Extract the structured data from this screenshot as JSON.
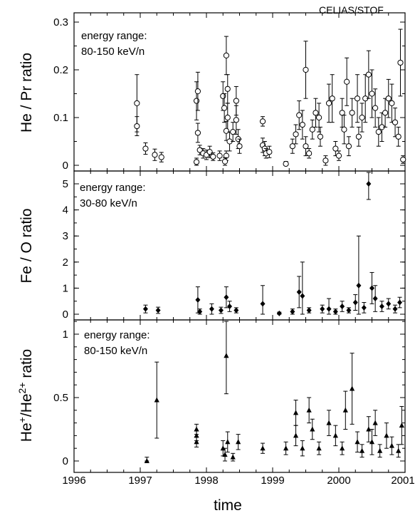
{
  "instrument_label": "CELIAS/STOF",
  "chart_data": {
    "type": "scatter",
    "xlabel": "time",
    "xlim": [
      1996,
      2001
    ],
    "xticks": [
      "1996",
      "1997",
      "1998",
      "1999",
      "2000",
      "2001"
    ],
    "error_bars": true,
    "panels": [
      {
        "ylabel": "He / Pr ratio",
        "ylim": [
          0,
          0.3
        ],
        "yticks": [
          "0",
          "0.1",
          "0.2",
          "0.3"
        ],
        "annotation": [
          "energy range:",
          "80-150 keV/n"
        ],
        "marker": "open-circle",
        "series": [
          {
            "points": [
              [
                1996.95,
                0.13,
                0.06
              ],
              [
                1996.95,
                0.082,
                0.02
              ],
              [
                1997.08,
                0.035,
                0.012
              ],
              [
                1997.22,
                0.022,
                0.012
              ],
              [
                1997.32,
                0.017,
                0.01
              ],
              [
                1997.85,
                0.007,
                0.008
              ],
              [
                1997.85,
                0.135,
                0.04
              ],
              [
                1997.87,
                0.155,
                0.04
              ],
              [
                1997.87,
                0.068,
                0.02
              ],
              [
                1997.9,
                0.032,
                0.01
              ],
              [
                1997.95,
                0.025,
                0.01
              ],
              [
                1998.0,
                0.022,
                0.01
              ],
              [
                1998.05,
                0.028,
                0.012
              ],
              [
                1998.1,
                0.018,
                0.008
              ],
              [
                1998.2,
                0.02,
                0.01
              ],
              [
                1998.25,
                0.145,
                0.03
              ],
              [
                1998.27,
                0.12,
                0.03
              ],
              [
                1998.3,
                0.23,
                0.04
              ],
              [
                1998.32,
                0.16,
                0.03
              ],
              [
                1998.32,
                0.1,
                0.03
              ],
              [
                1998.3,
                0.072,
                0.02
              ],
              [
                1998.35,
                0.05,
                0.02
              ],
              [
                1998.3,
                0.02,
                0.01
              ],
              [
                1998.28,
                0.008,
                0.008
              ],
              [
                1998.4,
                0.07,
                0.02
              ],
              [
                1998.45,
                0.135,
                0.03
              ],
              [
                1998.45,
                0.095,
                0.03
              ],
              [
                1998.48,
                0.055,
                0.02
              ],
              [
                1998.5,
                0.04,
                0.015
              ],
              [
                1998.85,
                0.092,
                0.01
              ],
              [
                1998.85,
                0.042,
                0.015
              ],
              [
                1998.88,
                0.035,
                0.015
              ],
              [
                1998.9,
                0.025,
                0.01
              ],
              [
                1998.95,
                0.028,
                0.012
              ],
              [
                1999.2,
                0.003,
                0.005
              ],
              [
                1999.3,
                0.04,
                0.015
              ],
              [
                1999.35,
                0.065,
                0.02
              ],
              [
                1999.4,
                0.105,
                0.03
              ],
              [
                1999.45,
                0.085,
                0.03
              ],
              [
                1999.5,
                0.2,
                0.06
              ],
              [
                1999.5,
                0.04,
                0.02
              ],
              [
                1999.55,
                0.025,
                0.01
              ],
              [
                1999.6,
                0.075,
                0.02
              ],
              [
                1999.65,
                0.11,
                0.03
              ],
              [
                1999.7,
                0.1,
                0.03
              ],
              [
                1999.72,
                0.06,
                0.02
              ],
              [
                1999.8,
                0.01,
                0.01
              ],
              [
                1999.85,
                0.13,
                0.04
              ],
              [
                1999.9,
                0.14,
                0.05
              ],
              [
                1999.95,
                0.035,
                0.015
              ],
              [
                2000.0,
                0.02,
                0.01
              ],
              [
                2000.05,
                0.11,
                0.03
              ],
              [
                2000.08,
                0.075,
                0.03
              ],
              [
                2000.12,
                0.175,
                0.05
              ],
              [
                2000.15,
                0.04,
                0.02
              ],
              [
                2000.2,
                0.11,
                0.03
              ],
              [
                2000.28,
                0.14,
                0.05
              ],
              [
                2000.3,
                0.06,
                0.02
              ],
              [
                2000.35,
                0.1,
                0.03
              ],
              [
                2000.4,
                0.14,
                0.05
              ],
              [
                2000.45,
                0.19,
                0.05
              ],
              [
                2000.5,
                0.15,
                0.05
              ],
              [
                2000.55,
                0.12,
                0.04
              ],
              [
                2000.6,
                0.07,
                0.03
              ],
              [
                2000.65,
                0.08,
                0.03
              ],
              [
                2000.7,
                0.11,
                0.03
              ],
              [
                2000.75,
                0.14,
                0.04
              ],
              [
                2000.8,
                0.13,
                0.04
              ],
              [
                2000.85,
                0.09,
                0.03
              ],
              [
                2000.9,
                0.06,
                0.02
              ],
              [
                2000.93,
                0.215,
                0.07
              ],
              [
                2000.97,
                0.012,
                0.008
              ]
            ]
          }
        ]
      },
      {
        "ylabel": "Fe / O ratio",
        "ylim": [
          0,
          5.5
        ],
        "yticks": [
          "0",
          "1",
          "2",
          "3",
          "4",
          "5"
        ],
        "annotation": [
          "energy range:",
          "30-80 keV/n"
        ],
        "marker": "filled-diamond",
        "series": [
          {
            "points": [
              [
                1997.08,
                0.2,
                0.15
              ],
              [
                1997.27,
                0.15,
                0.12
              ],
              [
                1997.87,
                0.55,
                0.5
              ],
              [
                1997.9,
                0.1,
                0.1
              ],
              [
                1998.08,
                0.2,
                0.2
              ],
              [
                1998.22,
                0.15,
                0.12
              ],
              [
                1998.3,
                0.65,
                0.4
              ],
              [
                1998.35,
                0.3,
                0.2
              ],
              [
                1998.45,
                0.15,
                0.1
              ],
              [
                1998.85,
                0.4,
                0.7
              ],
              [
                1999.1,
                0.03,
                0.05
              ],
              [
                1999.3,
                0.1,
                0.1
              ],
              [
                1999.4,
                0.85,
                0.6
              ],
              [
                1999.45,
                0.7,
                1.3
              ],
              [
                1999.55,
                0.15,
                0.1
              ],
              [
                1999.75,
                0.2,
                0.15
              ],
              [
                1999.85,
                0.2,
                0.4
              ],
              [
                1999.95,
                0.1,
                0.1
              ],
              [
                2000.05,
                0.3,
                0.2
              ],
              [
                2000.15,
                0.15,
                0.1
              ],
              [
                2000.25,
                0.45,
                0.3
              ],
              [
                2000.3,
                1.1,
                1.9
              ],
              [
                2000.38,
                0.25,
                0.2
              ],
              [
                2000.45,
                5.0,
                0.6
              ],
              [
                2000.5,
                1.0,
                0.6
              ],
              [
                2000.55,
                0.6,
                0.5
              ],
              [
                2000.65,
                0.3,
                0.2
              ],
              [
                2000.75,
                0.4,
                0.2
              ],
              [
                2000.85,
                0.2,
                0.15
              ],
              [
                2000.92,
                0.45,
                0.2
              ]
            ]
          }
        ]
      },
      {
        "ylabel": "He+/He2+ ratio",
        "ylim": [
          0,
          1.1
        ],
        "yticks": [
          "0",
          "0.5",
          "1"
        ],
        "annotation": [
          "energy range:",
          "80-150 keV/n"
        ],
        "marker": "filled-triangle",
        "series": [
          {
            "points": [
              [
                1997.1,
                0.0,
                0.03
              ],
              [
                1997.25,
                0.48,
                0.3
              ],
              [
                1997.85,
                0.25,
                0.04
              ],
              [
                1997.85,
                0.2,
                0.04
              ],
              [
                1997.85,
                0.15,
                0.04
              ],
              [
                1998.25,
                0.1,
                0.06
              ],
              [
                1998.28,
                0.05,
                0.05
              ],
              [
                1998.3,
                0.83,
                0.3
              ],
              [
                1998.32,
                0.15,
                0.08
              ],
              [
                1998.4,
                0.03,
                0.03
              ],
              [
                1998.48,
                0.15,
                0.06
              ],
              [
                1998.85,
                0.1,
                0.04
              ],
              [
                1999.2,
                0.1,
                0.05
              ],
              [
                1999.35,
                0.38,
                0.1
              ],
              [
                1999.35,
                0.2,
                0.08
              ],
              [
                1999.45,
                0.1,
                0.06
              ],
              [
                1999.55,
                0.4,
                0.1
              ],
              [
                1999.6,
                0.25,
                0.08
              ],
              [
                1999.7,
                0.1,
                0.05
              ],
              [
                1999.85,
                0.3,
                0.1
              ],
              [
                1999.95,
                0.2,
                0.08
              ],
              [
                2000.05,
                0.1,
                0.05
              ],
              [
                2000.1,
                0.4,
                0.15
              ],
              [
                2000.2,
                0.57,
                0.28
              ],
              [
                2000.28,
                0.15,
                0.08
              ],
              [
                2000.35,
                0.08,
                0.05
              ],
              [
                2000.45,
                0.25,
                0.1
              ],
              [
                2000.5,
                0.15,
                0.1
              ],
              [
                2000.55,
                0.3,
                0.1
              ],
              [
                2000.62,
                0.08,
                0.05
              ],
              [
                2000.72,
                0.2,
                0.1
              ],
              [
                2000.8,
                0.12,
                0.07
              ],
              [
                2000.9,
                0.08,
                0.05
              ],
              [
                2000.95,
                0.28,
                0.15
              ]
            ]
          }
        ]
      }
    ]
  }
}
